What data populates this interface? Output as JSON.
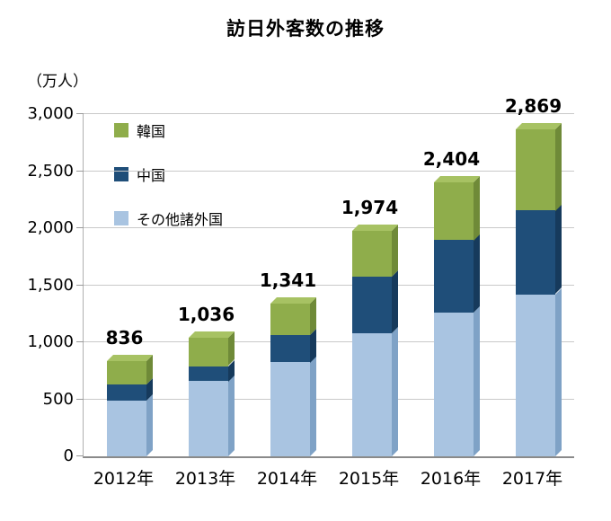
{
  "title": "訪日外客数の推移",
  "unit_label": "（万人）",
  "legend": [
    {
      "key": "korea",
      "label": "韓国",
      "color": "#8fad4b"
    },
    {
      "key": "china",
      "label": "中国",
      "color": "#1f4e79"
    },
    {
      "key": "others",
      "label": "その他諸外国",
      "color": "#a9c4e1"
    }
  ],
  "chart_data": {
    "type": "bar",
    "stacked": true,
    "title": "訪日外客数の推移",
    "ylabel": "（万人）",
    "categories": [
      "2012年",
      "2013年",
      "2014年",
      "2015年",
      "2016年",
      "2017年"
    ],
    "series": [
      {
        "key": "others",
        "name": "その他諸外国",
        "color": "#a9c4e1",
        "side_color": "#7fa2c6",
        "values": [
          489,
          659,
          825,
          1075,
          1258,
          1419
        ]
      },
      {
        "key": "china",
        "name": "中国",
        "color": "#1f4e79",
        "side_color": "#163a5c",
        "values": [
          143,
          131,
          241,
          499,
          637,
          736
        ]
      },
      {
        "key": "korea",
        "name": "韓国",
        "color": "#8fad4b",
        "side_color": "#6f8a38",
        "top_color": "#a7c263",
        "values": [
          204,
          246,
          275,
          400,
          509,
          714
        ]
      }
    ],
    "totals": [
      836,
      1036,
      1341,
      1974,
      2404,
      2869
    ],
    "total_labels": [
      "836",
      "1,036",
      "1,341",
      "1,974",
      "2,404",
      "2,869"
    ],
    "ylim": [
      0,
      3000
    ],
    "yticks": [
      0,
      500,
      1000,
      1500,
      2000,
      2500,
      3000
    ],
    "ytick_labels": [
      "0",
      "500",
      "1,000",
      "1,500",
      "2,000",
      "2,500",
      "3,000"
    ],
    "grid": true,
    "legend_position": "upper-left"
  }
}
